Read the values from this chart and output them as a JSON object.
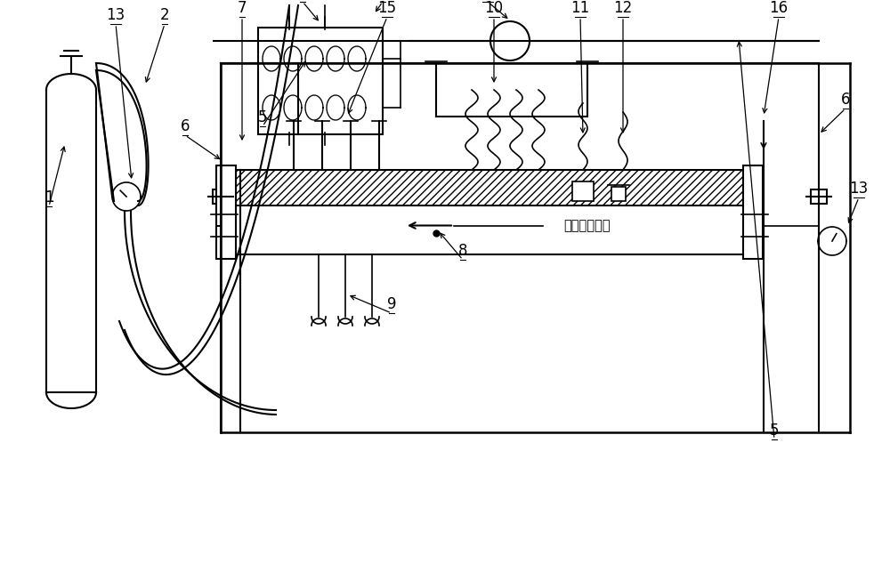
{
  "bg_color": "#ffffff",
  "line_color": "#000000",
  "chinese_text": "液体流动方向",
  "lw_main": 1.8,
  "lw_thin": 1.2,
  "lw_med": 1.5
}
